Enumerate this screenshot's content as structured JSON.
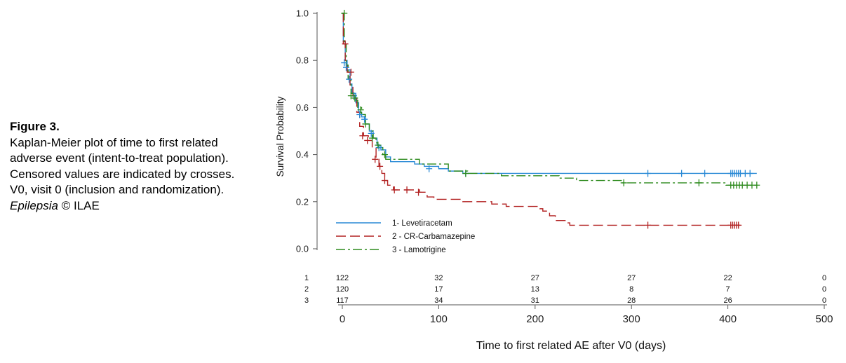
{
  "caption": {
    "figure_label": "Figure 3.",
    "text": "Kaplan-Meier plot of time to first related adverse event (intent-to-treat population). Censored values are indicated by crosses. V0, visit 0 (inclusion and randomization).",
    "journal": "Epilepsia",
    "copyright": " © ILAE"
  },
  "chart_data": {
    "type": "line",
    "title": "",
    "xlabel": "Time to first related AE after V0 (days)",
    "ylabel": "Survival Probability",
    "xlim": [
      0,
      500
    ],
    "ylim": [
      0,
      1
    ],
    "x_ticks": [
      0,
      100,
      200,
      300,
      400,
      500
    ],
    "y_ticks": [
      "0.0",
      "0.2",
      "0.4",
      "0.6",
      "0.8",
      "1.0"
    ],
    "grid": false,
    "legend_position": "bottom-left",
    "series": [
      {
        "name": "1- Levetiracetam",
        "color": "#2a8ad6",
        "dash": "solid",
        "steps": [
          [
            0,
            1.0
          ],
          [
            1,
            0.88
          ],
          [
            3,
            0.8
          ],
          [
            5,
            0.76
          ],
          [
            8,
            0.7
          ],
          [
            10,
            0.66
          ],
          [
            14,
            0.62
          ],
          [
            17,
            0.58
          ],
          [
            20,
            0.56
          ],
          [
            24,
            0.53
          ],
          [
            28,
            0.5
          ],
          [
            32,
            0.47
          ],
          [
            36,
            0.44
          ],
          [
            40,
            0.42
          ],
          [
            45,
            0.39
          ],
          [
            50,
            0.37
          ],
          [
            75,
            0.36
          ],
          [
            85,
            0.35
          ],
          [
            100,
            0.34
          ],
          [
            110,
            0.33
          ],
          [
            125,
            0.32
          ],
          [
            430,
            0.32
          ]
        ],
        "censored": [
          [
            2,
            0.79
          ],
          [
            4,
            0.77
          ],
          [
            7,
            0.72
          ],
          [
            12,
            0.65
          ],
          [
            18,
            0.57
          ],
          [
            23,
            0.55
          ],
          [
            30,
            0.49
          ],
          [
            38,
            0.43
          ],
          [
            90,
            0.34
          ],
          [
            128,
            0.32
          ],
          [
            317,
            0.32
          ],
          [
            352,
            0.32
          ],
          [
            376,
            0.32
          ],
          [
            403,
            0.32
          ],
          [
            405,
            0.32
          ],
          [
            407,
            0.32
          ],
          [
            409,
            0.32
          ],
          [
            411,
            0.32
          ],
          [
            413,
            0.32
          ],
          [
            418,
            0.32
          ],
          [
            423,
            0.32
          ]
        ]
      },
      {
        "name": "2 - CR-Carbamazepine",
        "color": "#b22222",
        "dash": "long-dash",
        "steps": [
          [
            0,
            1.0
          ],
          [
            1,
            0.87
          ],
          [
            3,
            0.8
          ],
          [
            5,
            0.75
          ],
          [
            8,
            0.69
          ],
          [
            11,
            0.64
          ],
          [
            15,
            0.58
          ],
          [
            18,
            0.52
          ],
          [
            22,
            0.48
          ],
          [
            27,
            0.46
          ],
          [
            31,
            0.43
          ],
          [
            35,
            0.38
          ],
          [
            38,
            0.35
          ],
          [
            41,
            0.32
          ],
          [
            44,
            0.29
          ],
          [
            47,
            0.27
          ],
          [
            53,
            0.25
          ],
          [
            80,
            0.24
          ],
          [
            88,
            0.22
          ],
          [
            95,
            0.21
          ],
          [
            125,
            0.2
          ],
          [
            155,
            0.19
          ],
          [
            170,
            0.18
          ],
          [
            205,
            0.17
          ],
          [
            208,
            0.16
          ],
          [
            215,
            0.14
          ],
          [
            221,
            0.12
          ],
          [
            232,
            0.11
          ],
          [
            236,
            0.1
          ],
          [
            413,
            0.1
          ]
        ],
        "censored": [
          [
            3,
            0.87
          ],
          [
            9,
            0.75
          ],
          [
            21,
            0.48
          ],
          [
            26,
            0.46
          ],
          [
            34,
            0.38
          ],
          [
            39,
            0.35
          ],
          [
            44,
            0.29
          ],
          [
            54,
            0.25
          ],
          [
            67,
            0.25
          ],
          [
            79,
            0.24
          ],
          [
            317,
            0.1
          ],
          [
            403,
            0.1
          ],
          [
            405,
            0.1
          ],
          [
            407,
            0.1
          ],
          [
            409,
            0.1
          ],
          [
            411,
            0.1
          ]
        ]
      },
      {
        "name": "3 - Lamotrigine",
        "color": "#2e8b1e",
        "dash": "dash-dot",
        "steps": [
          [
            0,
            1.0
          ],
          [
            2,
            0.87
          ],
          [
            4,
            0.78
          ],
          [
            6,
            0.72
          ],
          [
            9,
            0.66
          ],
          [
            12,
            0.63
          ],
          [
            16,
            0.6
          ],
          [
            20,
            0.57
          ],
          [
            24,
            0.53
          ],
          [
            28,
            0.5
          ],
          [
            32,
            0.47
          ],
          [
            35,
            0.45
          ],
          [
            38,
            0.43
          ],
          [
            42,
            0.4
          ],
          [
            45,
            0.38
          ],
          [
            80,
            0.36
          ],
          [
            110,
            0.33
          ],
          [
            130,
            0.32
          ],
          [
            165,
            0.31
          ],
          [
            225,
            0.3
          ],
          [
            243,
            0.29
          ],
          [
            290,
            0.28
          ],
          [
            390,
            0.28
          ],
          [
            398,
            0.27
          ],
          [
            430,
            0.27
          ]
        ],
        "censored": [
          [
            2,
            1.0
          ],
          [
            9,
            0.65
          ],
          [
            13,
            0.64
          ],
          [
            19,
            0.59
          ],
          [
            24,
            0.53
          ],
          [
            31,
            0.47
          ],
          [
            37,
            0.44
          ],
          [
            44,
            0.4
          ],
          [
            128,
            0.32
          ],
          [
            292,
            0.28
          ],
          [
            370,
            0.28
          ],
          [
            403,
            0.27
          ],
          [
            406,
            0.27
          ],
          [
            409,
            0.27
          ],
          [
            412,
            0.27
          ],
          [
            415,
            0.27
          ],
          [
            420,
            0.27
          ],
          [
            425,
            0.27
          ],
          [
            430,
            0.27
          ]
        ]
      }
    ],
    "risk_table": {
      "time_points": [
        0,
        100,
        200,
        300,
        400,
        500
      ],
      "rows": [
        {
          "label": "1",
          "values": [
            "122",
            "32",
            "27",
            "27",
            "22",
            "0"
          ]
        },
        {
          "label": "2",
          "values": [
            "120",
            "17",
            "13",
            "8",
            "7",
            "0"
          ]
        },
        {
          "label": "3",
          "values": [
            "117",
            "34",
            "31",
            "28",
            "26",
            "0"
          ]
        }
      ]
    }
  }
}
